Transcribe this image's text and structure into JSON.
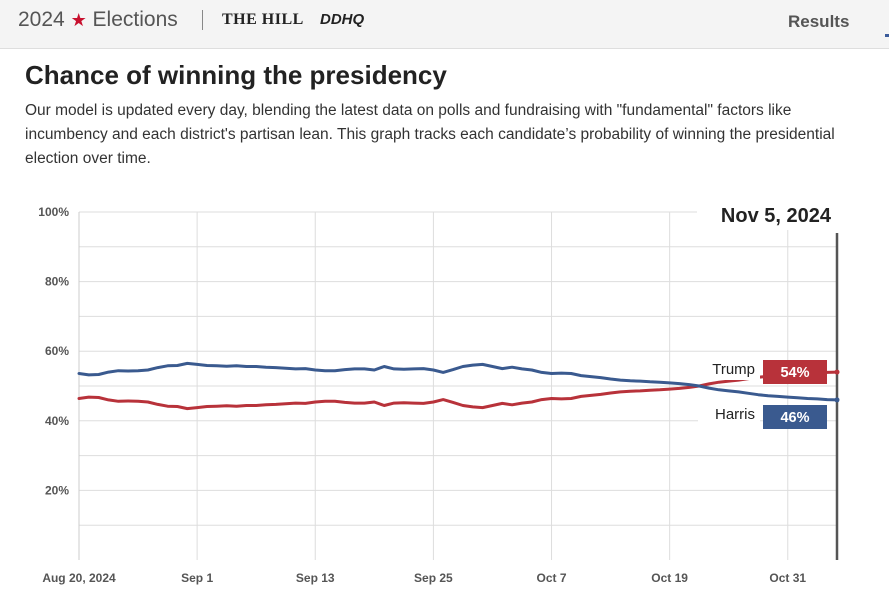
{
  "header": {
    "year": "2024",
    "star": "★",
    "section": "Elections",
    "separator": "|",
    "publication": "THE HILL",
    "partner": "DDHQ",
    "results_label": "Results"
  },
  "page": {
    "title": "Chance of winning the presidency",
    "description": "Our model is updated every day, blending the latest data on polls and fundraising with \"fundamental\" factors like incumbency and each district's partisan lean. This graph tracks each candidate’s probability of winning the presidential election over time."
  },
  "colors": {
    "trump": "#b8323a",
    "harris": "#3a5a8f",
    "grid": "#dddddd",
    "marker": "#555555"
  },
  "chart_data": {
    "type": "line",
    "title": "Chance of winning the presidency",
    "xlabel": "",
    "ylabel": "",
    "ylim": [
      0,
      100
    ],
    "y_ticks": [
      {
        "value": 20,
        "label": "20%"
      },
      {
        "value": 40,
        "label": "40%"
      },
      {
        "value": 60,
        "label": "60%"
      },
      {
        "value": 80,
        "label": "80%"
      },
      {
        "value": 100,
        "label": "100%"
      }
    ],
    "x_range": [
      0,
      77
    ],
    "x_ticks": [
      {
        "day": 0,
        "label": "Aug 20, 2024"
      },
      {
        "day": 12,
        "label": "Sep 1"
      },
      {
        "day": 24,
        "label": "Sep 13"
      },
      {
        "day": 36,
        "label": "Sep 25"
      },
      {
        "day": 48,
        "label": "Oct 7"
      },
      {
        "day": 60,
        "label": "Oct 19"
      },
      {
        "day": 72,
        "label": "Oct 31"
      }
    ],
    "highlight": {
      "day": 77,
      "date_label": "Nov 5, 2024"
    },
    "series": [
      {
        "name": "Trump",
        "final_label": "54%",
        "values": [
          46.4,
          46.8,
          46.7,
          46,
          45.6,
          45.7,
          45.6,
          45.4,
          44.7,
          44.2,
          44.1,
          43.5,
          43.8,
          44.1,
          44.2,
          44.3,
          44.2,
          44.4,
          44.4,
          44.6,
          44.7,
          44.9,
          45.1,
          45,
          45.4,
          45.6,
          45.6,
          45.3,
          45.1,
          45.1,
          45.4,
          44.4,
          45.1,
          45.2,
          45.1,
          45,
          45.4,
          46.1,
          45.3,
          44.4,
          44,
          43.8,
          44.4,
          45,
          44.6,
          45.1,
          45.4,
          46.1,
          46.4,
          46.3,
          46.4,
          47,
          47.3,
          47.6,
          48,
          48.3,
          48.5,
          48.6,
          48.8,
          48.9,
          49.1,
          49.3,
          49.6,
          50,
          50.6,
          51.1,
          51.4,
          51.7,
          52.1,
          52.5,
          52.8,
          53,
          53.2,
          53.4,
          53.6,
          53.7,
          53.9,
          54
        ]
      },
      {
        "name": "Harris",
        "final_label": "46%",
        "values": [
          53.6,
          53.2,
          53.3,
          54,
          54.4,
          54.3,
          54.4,
          54.6,
          55.3,
          55.8,
          55.9,
          56.5,
          56.2,
          55.9,
          55.8,
          55.7,
          55.8,
          55.6,
          55.6,
          55.4,
          55.3,
          55.1,
          54.9,
          55,
          54.6,
          54.4,
          54.4,
          54.7,
          54.9,
          54.9,
          54.6,
          55.6,
          54.9,
          54.8,
          54.9,
          55,
          54.6,
          53.9,
          54.7,
          55.6,
          56,
          56.2,
          55.6,
          55,
          55.4,
          54.9,
          54.6,
          53.9,
          53.6,
          53.7,
          53.6,
          53,
          52.7,
          52.4,
          52,
          51.7,
          51.5,
          51.4,
          51.2,
          51.1,
          50.9,
          50.7,
          50.4,
          50,
          49.4,
          48.9,
          48.6,
          48.3,
          47.9,
          47.5,
          47.2,
          47,
          46.8,
          46.6,
          46.4,
          46.3,
          46.1,
          46
        ]
      }
    ]
  }
}
